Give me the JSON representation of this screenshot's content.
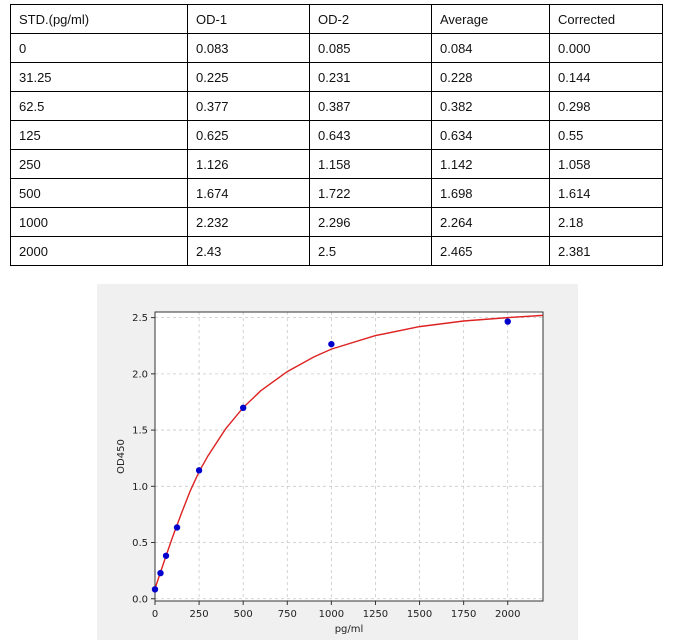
{
  "table": {
    "headers": [
      "STD.(pg/ml)",
      "OD-1",
      "OD-2",
      "Average",
      "Corrected"
    ],
    "rows": [
      [
        "0",
        "0.083",
        "0.085",
        "0.084",
        "0.000"
      ],
      [
        "31.25",
        "0.225",
        "0.231",
        "0.228",
        "0.144"
      ],
      [
        "62.5",
        "0.377",
        "0.387",
        "0.382",
        "0.298"
      ],
      [
        "125",
        "0.625",
        "0.643",
        "0.634",
        "0.55"
      ],
      [
        "250",
        "1.126",
        "1.158",
        "1.142",
        "1.058"
      ],
      [
        "500",
        "1.674",
        "1.722",
        "1.698",
        "1.614"
      ],
      [
        "1000",
        "2.232",
        "2.296",
        "2.264",
        "2.18"
      ],
      [
        "2000",
        "2.43",
        "2.5",
        "2.465",
        "2.381"
      ]
    ]
  },
  "chart_data": {
    "type": "scatter",
    "title": "",
    "xlabel": "pg/ml",
    "ylabel": "OD450",
    "xlim": [
      0,
      2200
    ],
    "ylim": [
      -0.02,
      2.55
    ],
    "xticks": [
      0,
      250,
      500,
      750,
      1000,
      1250,
      1500,
      1750,
      2000
    ],
    "yticks": [
      0.0,
      0.5,
      1.0,
      1.5,
      2.0,
      2.5
    ],
    "xtick_labels": [
      "0",
      "250",
      "500",
      "750",
      "1000",
      "1250",
      "1500",
      "1750",
      "2000"
    ],
    "ytick_labels": [
      "0.0",
      "0.5",
      "1.0",
      "1.5",
      "2.0",
      "2.5"
    ],
    "grid": true,
    "series": [
      {
        "kind": "points",
        "color": "#0000cc",
        "x": [
          0,
          31.25,
          62.5,
          125,
          250,
          500,
          1000,
          2000
        ],
        "y": [
          0.084,
          0.228,
          0.382,
          0.634,
          1.142,
          1.698,
          2.264,
          2.465
        ]
      },
      {
        "kind": "fit-curve",
        "color": "#dd2222",
        "x": [
          0,
          30,
          60,
          100,
          150,
          200,
          250,
          300,
          400,
          500,
          600,
          750,
          900,
          1000,
          1250,
          1500,
          1750,
          2000,
          2200
        ],
        "y": [
          0.09,
          0.23,
          0.37,
          0.55,
          0.76,
          0.96,
          1.13,
          1.27,
          1.51,
          1.7,
          1.85,
          2.02,
          2.15,
          2.22,
          2.34,
          2.42,
          2.47,
          2.5,
          2.52
        ]
      }
    ]
  }
}
